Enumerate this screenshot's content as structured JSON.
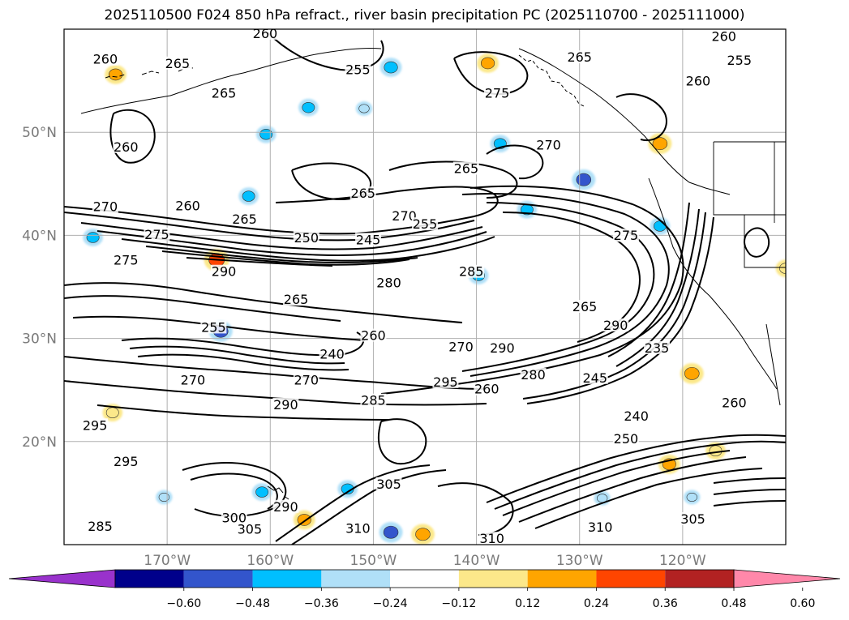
{
  "title": "2025110500 F024 850 hPa refract., river basin precipitation PC (2025110700 - 2025111000)",
  "map": {
    "lat_labels": [
      "50°N",
      "40°N",
      "30°N",
      "20°N"
    ],
    "lat_values": [
      50,
      40,
      30,
      20
    ],
    "lon_labels": [
      "170°W",
      "160°W",
      "150°W",
      "140°W",
      "130°W",
      "120°W"
    ],
    "lon_values": [
      -170,
      -160,
      -150,
      -140,
      -130,
      -120
    ],
    "lon_range": [
      -180,
      -110
    ],
    "lat_range": [
      10,
      60
    ],
    "contour_labels": [
      {
        "text": "260",
        "lon": -160.5,
        "lat": 59.3
      },
      {
        "text": "260",
        "lon": -116,
        "lat": 59
      },
      {
        "text": "260",
        "lon": -176,
        "lat": 56.8
      },
      {
        "text": "265",
        "lon": -169,
        "lat": 56.4
      },
      {
        "text": "255",
        "lon": -151.5,
        "lat": 55.8
      },
      {
        "text": "265",
        "lon": -130,
        "lat": 57
      },
      {
        "text": "255",
        "lon": -114.5,
        "lat": 56.7
      },
      {
        "text": "260",
        "lon": -118.5,
        "lat": 54.7
      },
      {
        "text": "265",
        "lon": -164.5,
        "lat": 53.5
      },
      {
        "text": "275",
        "lon": -138,
        "lat": 53.5
      },
      {
        "text": "260",
        "lon": -174,
        "lat": 48.3
      },
      {
        "text": "270",
        "lon": -133,
        "lat": 48.5
      },
      {
        "text": "265",
        "lon": -141,
        "lat": 46.2
      },
      {
        "text": "265",
        "lon": -151,
        "lat": 43.8
      },
      {
        "text": "260",
        "lon": -168,
        "lat": 42.6
      },
      {
        "text": "270",
        "lon": -176,
        "lat": 42.5
      },
      {
        "text": "270",
        "lon": -147,
        "lat": 41.6
      },
      {
        "text": "265",
        "lon": -162.5,
        "lat": 41.3
      },
      {
        "text": "255",
        "lon": -145,
        "lat": 40.8
      },
      {
        "text": "275",
        "lon": -171,
        "lat": 39.8
      },
      {
        "text": "250",
        "lon": -156.5,
        "lat": 39.5
      },
      {
        "text": "245",
        "lon": -150.5,
        "lat": 39.3
      },
      {
        "text": "275",
        "lon": -125.5,
        "lat": 39.7
      },
      {
        "text": "275",
        "lon": -174,
        "lat": 37.3
      },
      {
        "text": "290",
        "lon": -164.5,
        "lat": 36.2
      },
      {
        "text": "285",
        "lon": -140.5,
        "lat": 36.2
      },
      {
        "text": "280",
        "lon": -148.5,
        "lat": 35.1
      },
      {
        "text": "265",
        "lon": -157.5,
        "lat": 33.5
      },
      {
        "text": "265",
        "lon": -129.5,
        "lat": 32.8
      },
      {
        "text": "290",
        "lon": -126.5,
        "lat": 31
      },
      {
        "text": "255",
        "lon": -165.5,
        "lat": 30.8
      },
      {
        "text": "260",
        "lon": -150,
        "lat": 30
      },
      {
        "text": "270",
        "lon": -141.5,
        "lat": 28.9
      },
      {
        "text": "290",
        "lon": -137.5,
        "lat": 28.8
      },
      {
        "text": "235",
        "lon": -122.5,
        "lat": 28.8
      },
      {
        "text": "240",
        "lon": -154,
        "lat": 28.2
      },
      {
        "text": "270",
        "lon": -167.5,
        "lat": 25.7
      },
      {
        "text": "270",
        "lon": -156.5,
        "lat": 25.7
      },
      {
        "text": "295",
        "lon": -143,
        "lat": 25.5
      },
      {
        "text": "280",
        "lon": -134.5,
        "lat": 26.2
      },
      {
        "text": "245",
        "lon": -128.5,
        "lat": 25.9
      },
      {
        "text": "260",
        "lon": -139,
        "lat": 24.8
      },
      {
        "text": "285",
        "lon": -150,
        "lat": 23.7
      },
      {
        "text": "290",
        "lon": -158.5,
        "lat": 23.3
      },
      {
        "text": "240",
        "lon": -124.5,
        "lat": 22.2
      },
      {
        "text": "260",
        "lon": -115,
        "lat": 23.5
      },
      {
        "text": "295",
        "lon": -177,
        "lat": 21.3
      },
      {
        "text": "295",
        "lon": -174,
        "lat": 17.8
      },
      {
        "text": "250",
        "lon": -125.5,
        "lat": 20
      },
      {
        "text": "305",
        "lon": -148.5,
        "lat": 15.6
      },
      {
        "text": "300",
        "lon": -163.5,
        "lat": 12.3
      },
      {
        "text": "290",
        "lon": -158.5,
        "lat": 13.4
      },
      {
        "text": "305",
        "lon": -162,
        "lat": 11.2
      },
      {
        "text": "285",
        "lon": -176.5,
        "lat": 11.5
      },
      {
        "text": "310",
        "lon": -151.5,
        "lat": 11.3
      },
      {
        "text": "310",
        "lon": -138.5,
        "lat": 10.3
      },
      {
        "text": "310",
        "lon": -128,
        "lat": 11.4
      },
      {
        "text": "305",
        "lon": -119,
        "lat": 12.2
      }
    ]
  },
  "colorbar": {
    "colors": [
      "#9932cc",
      "#00008b",
      "#3355cc",
      "#00bfff",
      "#b0e0f8",
      "#ffffff",
      "#fce88a",
      "#ffa500",
      "#ff4500",
      "#b22222",
      "#ff88aa"
    ],
    "tick_labels": [
      "−0.60",
      "−0.48",
      "−0.36",
      "−0.24",
      "−0.12",
      "0.12",
      "0.24",
      "0.36",
      "0.48",
      "0.60"
    ],
    "tick_values": [
      -0.6,
      -0.48,
      -0.36,
      -0.24,
      -0.12,
      0.12,
      0.24,
      0.36,
      0.48,
      0.6
    ]
  },
  "precip_blobs": [
    {
      "lon": -148.3,
      "lat": 56.3,
      "value": -0.3
    },
    {
      "lon": -156.3,
      "lat": 52.4,
      "value": -0.24
    },
    {
      "lon": -150.9,
      "lat": 52.3,
      "value": -0.12
    },
    {
      "lon": -160.4,
      "lat": 49.8,
      "value": -0.24
    },
    {
      "lon": -137.7,
      "lat": 48.9,
      "value": -0.24
    },
    {
      "lon": -129.6,
      "lat": 45.4,
      "value": -0.36
    },
    {
      "lon": -162.1,
      "lat": 43.8,
      "value": -0.24
    },
    {
      "lon": -135.1,
      "lat": 42.5,
      "value": -0.24
    },
    {
      "lon": -122.2,
      "lat": 40.9,
      "value": -0.24
    },
    {
      "lon": -177.2,
      "lat": 39.8,
      "value": -0.24
    },
    {
      "lon": -164.8,
      "lat": 30.7,
      "value": -0.36
    },
    {
      "lon": -160.8,
      "lat": 15.1,
      "value": -0.24
    },
    {
      "lon": -152.5,
      "lat": 15.4,
      "value": -0.24
    },
    {
      "lon": -148.3,
      "lat": 11.2,
      "value": -0.36
    },
    {
      "lon": -170.3,
      "lat": 14.6,
      "value": -0.12
    },
    {
      "lon": -127.8,
      "lat": 14.5,
      "value": -0.12
    },
    {
      "lon": -119.1,
      "lat": 14.6,
      "value": -0.12
    },
    {
      "lon": -139.8,
      "lat": 36.1,
      "value": -0.24
    },
    {
      "lon": -138.9,
      "lat": 56.7,
      "value": 0.3
    },
    {
      "lon": -175,
      "lat": 55.6,
      "value": 0.3
    },
    {
      "lon": -122.2,
      "lat": 48.9,
      "value": 0.36
    },
    {
      "lon": -165.2,
      "lat": 37.6,
      "value": 0.42
    },
    {
      "lon": -145.2,
      "lat": 11.0,
      "value": 0.36
    },
    {
      "lon": -156.7,
      "lat": 12.4,
      "value": 0.3
    },
    {
      "lon": -175.3,
      "lat": 22.8,
      "value": 0.24
    },
    {
      "lon": -121.3,
      "lat": 17.8,
      "value": 0.3
    },
    {
      "lon": -119.1,
      "lat": 26.6,
      "value": 0.36
    },
    {
      "lon": -110,
      "lat": 36.8,
      "value": 0.24
    },
    {
      "lon": -116.8,
      "lat": 19.1,
      "value": 0.24
    }
  ]
}
